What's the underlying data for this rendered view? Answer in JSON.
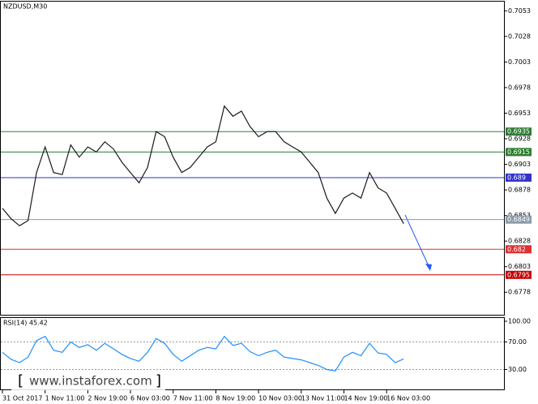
{
  "title": "NZDUSD,M30",
  "watermark": "www.instaforex.com",
  "chart_data": [
    {
      "type": "line",
      "x": [
        0,
        2,
        4,
        6,
        8,
        10,
        12,
        14,
        16,
        18,
        20,
        22,
        24,
        26,
        28,
        30,
        32,
        34,
        36,
        38,
        40,
        42,
        44,
        46,
        48,
        50,
        52,
        54,
        56,
        58,
        60,
        62,
        64,
        66,
        68,
        70,
        72,
        74,
        76,
        78,
        80,
        82,
        84,
        86,
        88,
        90,
        92,
        94
      ],
      "series": [
        {
          "color": "#1a1a1a",
          "values": [
            0.686,
            0.685,
            0.6843,
            0.6848,
            0.6895,
            0.692,
            0.6895,
            0.6893,
            0.6922,
            0.691,
            0.692,
            0.6915,
            0.6925,
            0.6918,
            0.6905,
            0.6895,
            0.6885,
            0.69,
            0.6935,
            0.693,
            0.691,
            0.6895,
            0.69,
            0.691,
            0.692,
            0.6925,
            0.696,
            0.695,
            0.6955,
            0.694,
            0.693,
            0.6935,
            0.6935,
            0.6925,
            0.692,
            0.6915,
            0.6905,
            0.6895,
            0.687,
            0.6855,
            0.687,
            0.6875,
            0.687,
            0.6895,
            0.688,
            0.6875,
            0.686,
            0.6845
          ]
        }
      ],
      "xlim": [
        0,
        117.5
      ],
      "xticks": [
        {
          "value": 0,
          "label": "31 Oct 2017"
        },
        {
          "value": 10,
          "label": "1 Nov 11:00"
        },
        {
          "value": 20,
          "label": "2 Nov 19:00"
        },
        {
          "value": 30,
          "label": "6 Nov 03:00"
        },
        {
          "value": 40,
          "label": "7 Nov 11:00"
        },
        {
          "value": 50,
          "label": "8 Nov 19:00"
        },
        {
          "value": 60,
          "label": "10 Nov 03:00"
        },
        {
          "value": 70,
          "label": "13 Nov 11:00"
        },
        {
          "value": 80,
          "label": "14 Nov 19:00"
        },
        {
          "value": 90,
          "label": "16 Nov 03:00"
        }
      ],
      "ylim": [
        0.6756,
        0.7062
      ],
      "yticks": [
        0.7053,
        0.7028,
        0.7003,
        0.6978,
        0.6953,
        0.6928,
        0.6903,
        0.6878,
        0.6853,
        0.6828,
        0.6803,
        0.6778
      ],
      "levels": [
        {
          "value": 0.6935,
          "color": "#2e7d32"
        },
        {
          "value": 0.6915,
          "color": "#2e7d32"
        },
        {
          "value": 0.689,
          "color": "#3333cc"
        },
        {
          "value": 0.6849,
          "color": "#8a9aa8"
        },
        {
          "value": 0.682,
          "color": "#e03030"
        },
        {
          "value": 0.6795,
          "color": "#cc0000"
        }
      ]
    },
    {
      "type": "line",
      "title": "RSI(14) 45.42",
      "x": [
        0,
        2,
        4,
        6,
        8,
        10,
        12,
        14,
        16,
        18,
        20,
        22,
        24,
        26,
        28,
        30,
        32,
        34,
        36,
        38,
        40,
        42,
        44,
        46,
        48,
        50,
        52,
        54,
        56,
        58,
        60,
        62,
        64,
        66,
        68,
        70,
        72,
        74,
        76,
        78,
        80,
        82,
        84,
        86,
        88,
        90,
        92,
        94
      ],
      "series": [
        {
          "color": "#1e90ff",
          "values": [
            55,
            45,
            40,
            48,
            72,
            78,
            58,
            55,
            70,
            62,
            66,
            58,
            68,
            60,
            52,
            46,
            42,
            55,
            75,
            68,
            52,
            42,
            50,
            58,
            62,
            60,
            78,
            65,
            68,
            56,
            50,
            55,
            58,
            48,
            46,
            44,
            40,
            36,
            30,
            28,
            48,
            55,
            50,
            68,
            54,
            52,
            40,
            45.42
          ]
        }
      ],
      "xlim": [
        0,
        117.5
      ],
      "ylim": [
        0,
        100
      ],
      "yticks": [
        {
          "value": 100,
          "label": "100.00"
        },
        {
          "value": 70,
          "label": "70.00"
        },
        {
          "value": 30,
          "label": "30.00"
        }
      ]
    }
  ]
}
